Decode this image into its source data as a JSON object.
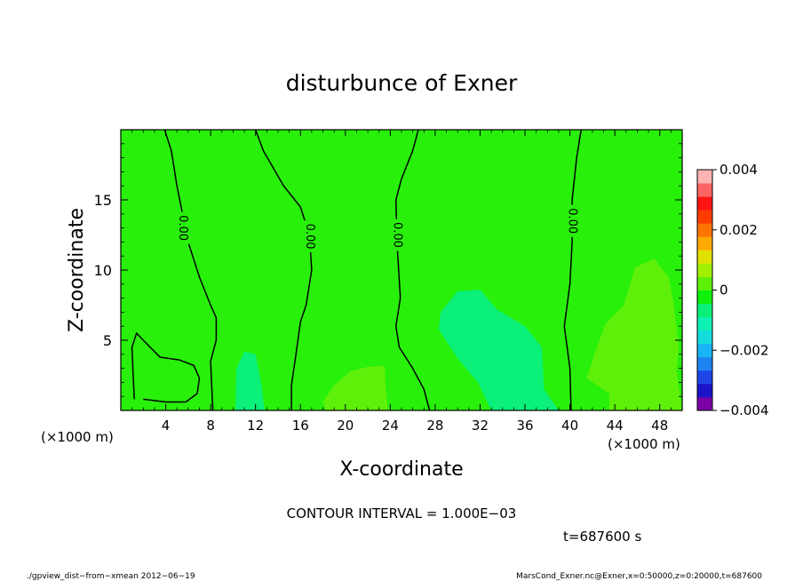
{
  "chart_data": {
    "type": "heatmap",
    "title": "disturbunce of Exner",
    "xlabel": "X-coordinate",
    "ylabel": "Z-coordinate",
    "x_unit_left": "(×1000 m)",
    "x_unit_right": "(×1000 m)",
    "xlim": [
      0,
      50
    ],
    "ylim": [
      0,
      20
    ],
    "x_ticks": [
      4,
      8,
      12,
      16,
      20,
      24,
      28,
      32,
      36,
      40,
      44,
      48
    ],
    "x_tick_labels": [
      "4",
      "8",
      "12",
      "16",
      "20",
      "24",
      "28",
      "32",
      "36",
      "40",
      "44",
      "48"
    ],
    "y_ticks": [
      5,
      10,
      15
    ],
    "y_tick_labels": [
      "5",
      "10",
      "15"
    ],
    "colorbar": {
      "min": -0.004,
      "max": 0.004,
      "tick_values": [
        0.004,
        0.002,
        0,
        -0.002,
        -0.004
      ],
      "tick_labels": [
        "0.004",
        "0.002",
        "0",
        "−0.002",
        "−0.004"
      ],
      "colors": [
        "#7b00a8",
        "#1a14c8",
        "#1e46e6",
        "#1e82f0",
        "#19b4f5",
        "#14dcdc",
        "#0ff0b4",
        "#0af078",
        "#0ff00a",
        "#5ff00a",
        "#a0f000",
        "#e1e100",
        "#ffaa00",
        "#ff7300",
        "#ff3c00",
        "#ff1414",
        "#ff6464",
        "#ffb4b4"
      ]
    },
    "background_color": "#28f00a",
    "regions": [
      {
        "level": -0.0005,
        "color": "#0af078",
        "points": [
          [
            28.5,
            7
          ],
          [
            30,
            8.5
          ],
          [
            32,
            8.6
          ],
          [
            33.5,
            7.2
          ],
          [
            36,
            6
          ],
          [
            37.5,
            4.5
          ],
          [
            37.7,
            1.5
          ],
          [
            39,
            0
          ],
          [
            33,
            0
          ],
          [
            31.8,
            2
          ],
          [
            30,
            3.7
          ],
          [
            28.3,
            5.8
          ]
        ]
      },
      {
        "level": -0.0005,
        "color": "#0af078",
        "points": [
          [
            10.2,
            0
          ],
          [
            10.3,
            3
          ],
          [
            11,
            4.2
          ],
          [
            12,
            4
          ],
          [
            12.5,
            2
          ],
          [
            12.8,
            0
          ]
        ]
      },
      {
        "level": 0.0005,
        "color": "#5ff00a",
        "points": [
          [
            41.5,
            2.3
          ],
          [
            42.3,
            4.3
          ],
          [
            43.2,
            6.2
          ],
          [
            44.8,
            7.5
          ],
          [
            45.8,
            10.2
          ],
          [
            47.5,
            10.8
          ],
          [
            48.8,
            9.5
          ],
          [
            49.2,
            7.8
          ],
          [
            49.7,
            4.5
          ],
          [
            49.5,
            2.8
          ],
          [
            50,
            0
          ],
          [
            43.5,
            0
          ],
          [
            43.5,
            1.2
          ]
        ]
      },
      {
        "level": 0.0005,
        "color": "#5ff00a",
        "points": [
          [
            18,
            0.6
          ],
          [
            19,
            1.8
          ],
          [
            20.5,
            2.8
          ],
          [
            22,
            3.1
          ],
          [
            23.5,
            3.2
          ],
          [
            23.6,
            1.5
          ],
          [
            23.8,
            0
          ],
          [
            18.3,
            0
          ]
        ]
      }
    ],
    "contours": [
      {
        "label": "0.00",
        "label_at": [
          5.5,
          13
        ],
        "points": [
          [
            3.9,
            20
          ],
          [
            4.5,
            18.5
          ],
          [
            5,
            16
          ],
          [
            5.5,
            14
          ],
          [
            6,
            12
          ],
          [
            7,
            9.5
          ],
          [
            8,
            7.5
          ],
          [
            8.5,
            6.6
          ],
          [
            8.5,
            5
          ],
          [
            8,
            3.5
          ],
          [
            8.2,
            0
          ]
        ]
      },
      {
        "label": "0.00",
        "label_at": [
          16.8,
          12.4
        ],
        "points": [
          [
            12,
            20
          ],
          [
            12.7,
            18.5
          ],
          [
            14.5,
            16
          ],
          [
            16,
            14.5
          ],
          [
            16.8,
            12.5
          ],
          [
            17,
            10
          ],
          [
            16.5,
            7.5
          ],
          [
            16,
            6.3
          ],
          [
            15.6,
            4
          ],
          [
            15.2,
            1.8
          ],
          [
            15.2,
            0
          ]
        ]
      },
      {
        "label": "0.00",
        "label_at": [
          24.6,
          12.5
        ],
        "points": [
          [
            26.5,
            20
          ],
          [
            26,
            18.5
          ],
          [
            25,
            16.5
          ],
          [
            24.5,
            15
          ],
          [
            24.6,
            12
          ],
          [
            24.9,
            8
          ],
          [
            24.5,
            6
          ],
          [
            24.8,
            4.5
          ],
          [
            26,
            3
          ],
          [
            27,
            1.5
          ],
          [
            27.5,
            0
          ]
        ]
      },
      {
        "label": "0.00",
        "label_at": [
          40.2,
          13.5
        ],
        "points": [
          [
            41,
            20
          ],
          [
            40.6,
            18
          ],
          [
            40.2,
            15
          ],
          [
            40.2,
            12
          ],
          [
            40,
            9
          ],
          [
            39.5,
            6
          ],
          [
            40,
            3
          ],
          [
            40.1,
            0
          ]
        ]
      },
      {
        "label": "",
        "label_at": null,
        "points": [
          [
            1.2,
            0.8
          ],
          [
            1.1,
            2.5
          ],
          [
            1,
            4.5
          ],
          [
            1.4,
            5.5
          ],
          [
            2,
            5
          ],
          [
            3.5,
            3.8
          ],
          [
            5.2,
            3.6
          ],
          [
            6.5,
            3.2
          ],
          [
            7,
            2.3
          ],
          [
            6.8,
            1.2
          ],
          [
            5.8,
            0.6
          ],
          [
            4,
            0.6
          ],
          [
            2,
            0.8
          ]
        ]
      }
    ]
  },
  "annotations": {
    "contour_interval": "CONTOUR INTERVAL = 1.000E−03",
    "time": "t=687600 s",
    "footer_left": "./gpview_dist−from−xmean   2012−06−19",
    "footer_right": "MarsCond_Exner.nc@Exner,x=0:50000,z=0:20000,t=687600"
  }
}
